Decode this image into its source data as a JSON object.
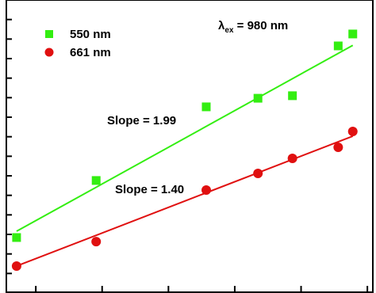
{
  "chart_data": {
    "type": "scatter",
    "xlim": [
      0.46,
      6.13
    ],
    "ylim": [
      0,
      15
    ],
    "xticks": [
      1,
      2,
      3,
      4,
      5,
      6
    ],
    "yticks": [
      1,
      2,
      3,
      4,
      5,
      6,
      7,
      8,
      9,
      10,
      11,
      12,
      13,
      14
    ],
    "legend": "upper left",
    "series": [
      {
        "name": "550 nm",
        "color": "#33ee11",
        "marker": "square",
        "x": [
          0.71,
          1.91,
          3.57,
          4.35,
          4.87,
          5.56,
          5.78
        ],
        "values": [
          2.84,
          5.76,
          9.53,
          9.97,
          10.1,
          12.65,
          13.26
        ],
        "fit": {
          "x": [
            0.71,
            5.78
          ],
          "values": [
            3.16,
            12.68
          ]
        }
      },
      {
        "name": "661 nm",
        "color": "#e01010",
        "marker": "circle",
        "x": [
          0.71,
          1.91,
          3.57,
          4.35,
          4.87,
          5.56,
          5.78
        ],
        "values": [
          1.38,
          2.63,
          5.27,
          6.12,
          6.89,
          7.46,
          8.27
        ],
        "fit": {
          "x": [
            0.71,
            5.78
          ],
          "values": [
            1.38,
            8.03
          ]
        }
      }
    ],
    "annotations": [
      "Slope = 1.99",
      "Slope = 1.40"
    ],
    "excitation_label": {
      "symbol": "λ",
      "subscript": "ex",
      "text": " = 980 nm"
    }
  }
}
